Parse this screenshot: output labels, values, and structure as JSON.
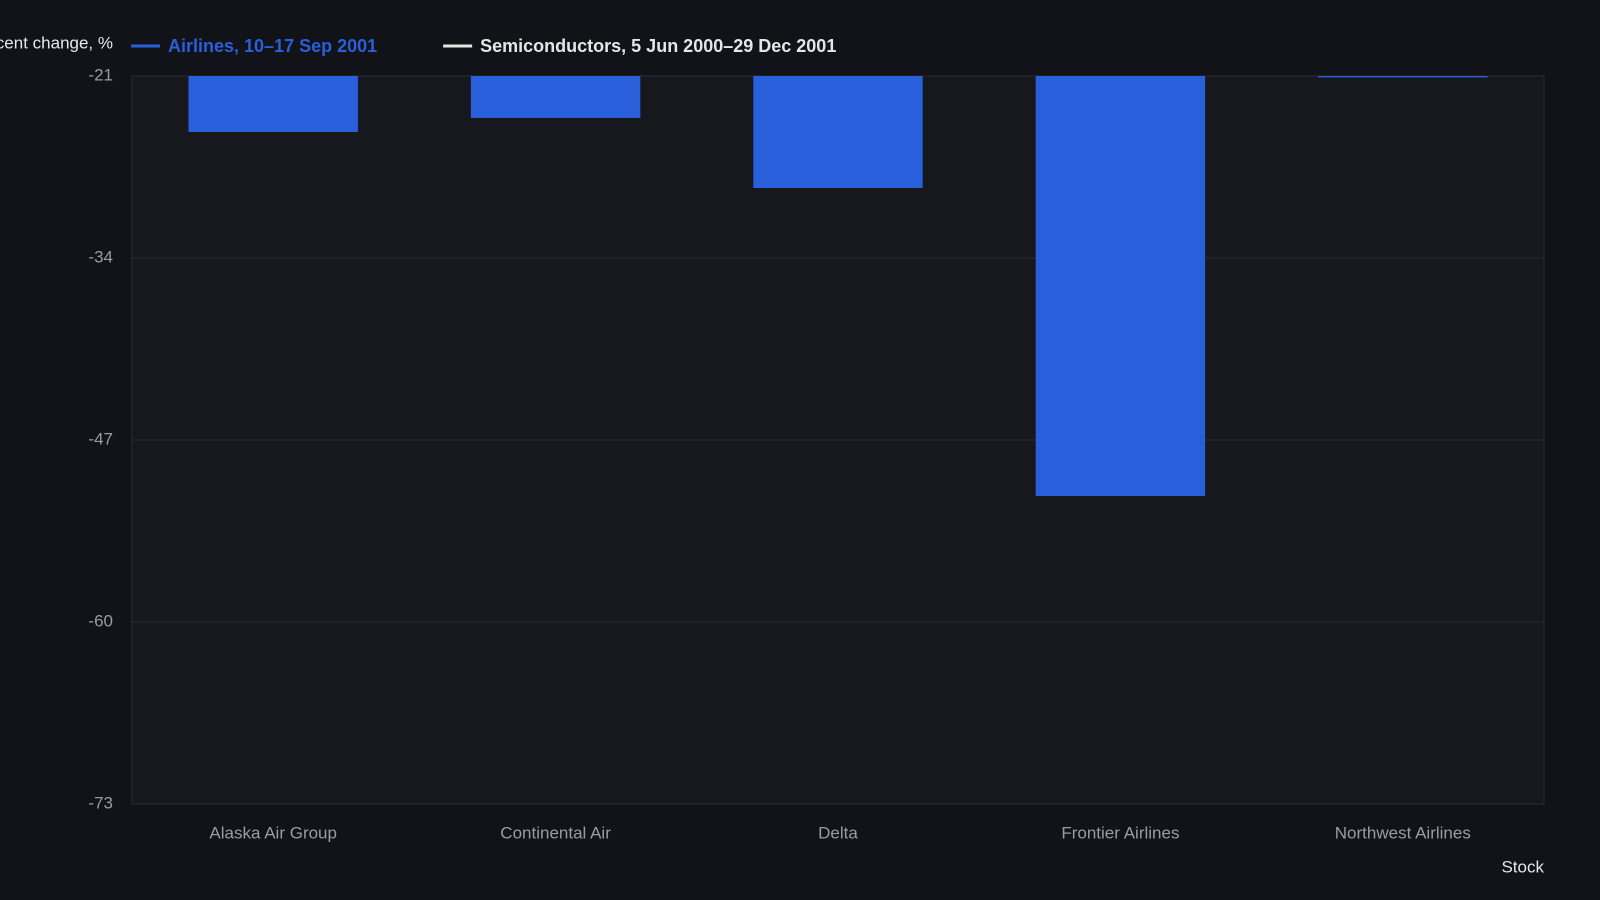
{
  "chart_data": {
    "type": "bar",
    "y_label": "Percent change, %",
    "x_label": "Stock",
    "categories": [
      "Alaska Air Group",
      "Continental Air",
      "Delta",
      "Frontier Airlines",
      "Northwest Airlines"
    ],
    "series": [
      {
        "name": "Airlines, 10–17 Sep 2001",
        "color": "#2a5fdb",
        "values": [
          -25,
          -24,
          -29,
          -51,
          -21.1
        ]
      },
      {
        "name": "Semiconductors, 5 Jun 2000–29 Dec 2001",
        "color": "#e6e6e6",
        "values": [
          null,
          null,
          null,
          null,
          null
        ]
      }
    ],
    "ylim": [
      -73,
      -21
    ],
    "yticks": [
      -73,
      -60,
      -47,
      -34,
      -21
    ],
    "grid": true
  }
}
